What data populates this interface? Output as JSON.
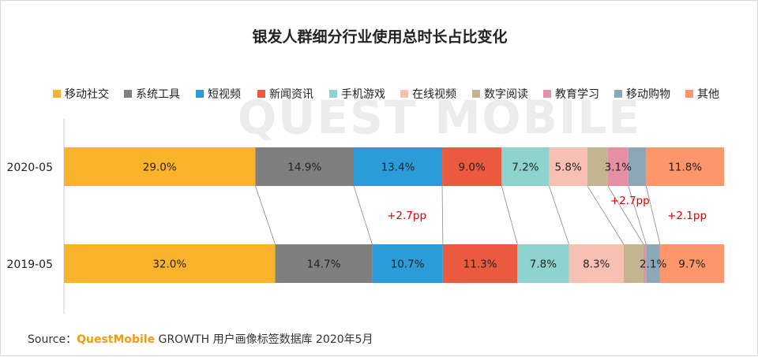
{
  "source": {
    "label": "Source：",
    "brand": "QuestMobile",
    "text": " GROWTH 用户画像标签数据库 2020年5月"
  },
  "watermark": "QUEST MOBILE",
  "chart_data": {
    "type": "bar",
    "orientation": "horizontal",
    "stacked": "percent",
    "title": "银发人群细分行业使用总时长占比变化",
    "legend_position": "top",
    "categories": [
      "2020-05",
      "2019-05"
    ],
    "series": [
      {
        "name": "移动社交",
        "color": "#FBB32C",
        "values": [
          29.0,
          32.0
        ],
        "labels": [
          "29.0%",
          "32.0%"
        ]
      },
      {
        "name": "系统工具",
        "color": "#7F7F7F",
        "values": [
          14.9,
          14.7
        ],
        "labels": [
          "14.9%",
          "14.7%"
        ]
      },
      {
        "name": "短视频",
        "color": "#2B9CD8",
        "values": [
          13.4,
          10.7
        ],
        "labels": [
          "13.4%",
          "10.7%"
        ]
      },
      {
        "name": "新闻资讯",
        "color": "#E95A3E",
        "values": [
          9.0,
          11.3
        ],
        "labels": [
          "9.0%",
          "11.3%"
        ]
      },
      {
        "name": "手机游戏",
        "color": "#8FD3CF",
        "values": [
          7.2,
          7.8
        ],
        "labels": [
          "7.2%",
          "7.8%"
        ]
      },
      {
        "name": "在线视频",
        "color": "#F8BFB3",
        "values": [
          5.8,
          8.3
        ],
        "labels": [
          "5.8%",
          "8.3%"
        ]
      },
      {
        "name": "数字阅读",
        "color": "#C3B58F",
        "values": [
          3.1,
          3.0
        ],
        "labels": [
          "",
          ""
        ]
      },
      {
        "name": "教育学习",
        "color": "#E48FA3",
        "values": [
          3.1,
          0.4
        ],
        "labels": [
          "3.1%",
          ""
        ]
      },
      {
        "name": "移动购物",
        "color": "#8CA8B8",
        "values": [
          2.7,
          2.1
        ],
        "labels": [
          "",
          "2.1%"
        ]
      },
      {
        "name": "其他",
        "color": "#FF966B",
        "values": [
          11.8,
          9.7
        ],
        "labels": [
          "11.8%",
          "9.7%"
        ]
      }
    ],
    "annotations": [
      {
        "text": "+2.7pp",
        "series": "短视频"
      },
      {
        "text": "+2.7pp",
        "series": "教育学习"
      },
      {
        "text": "+2.1pp",
        "series": "其他"
      }
    ]
  }
}
